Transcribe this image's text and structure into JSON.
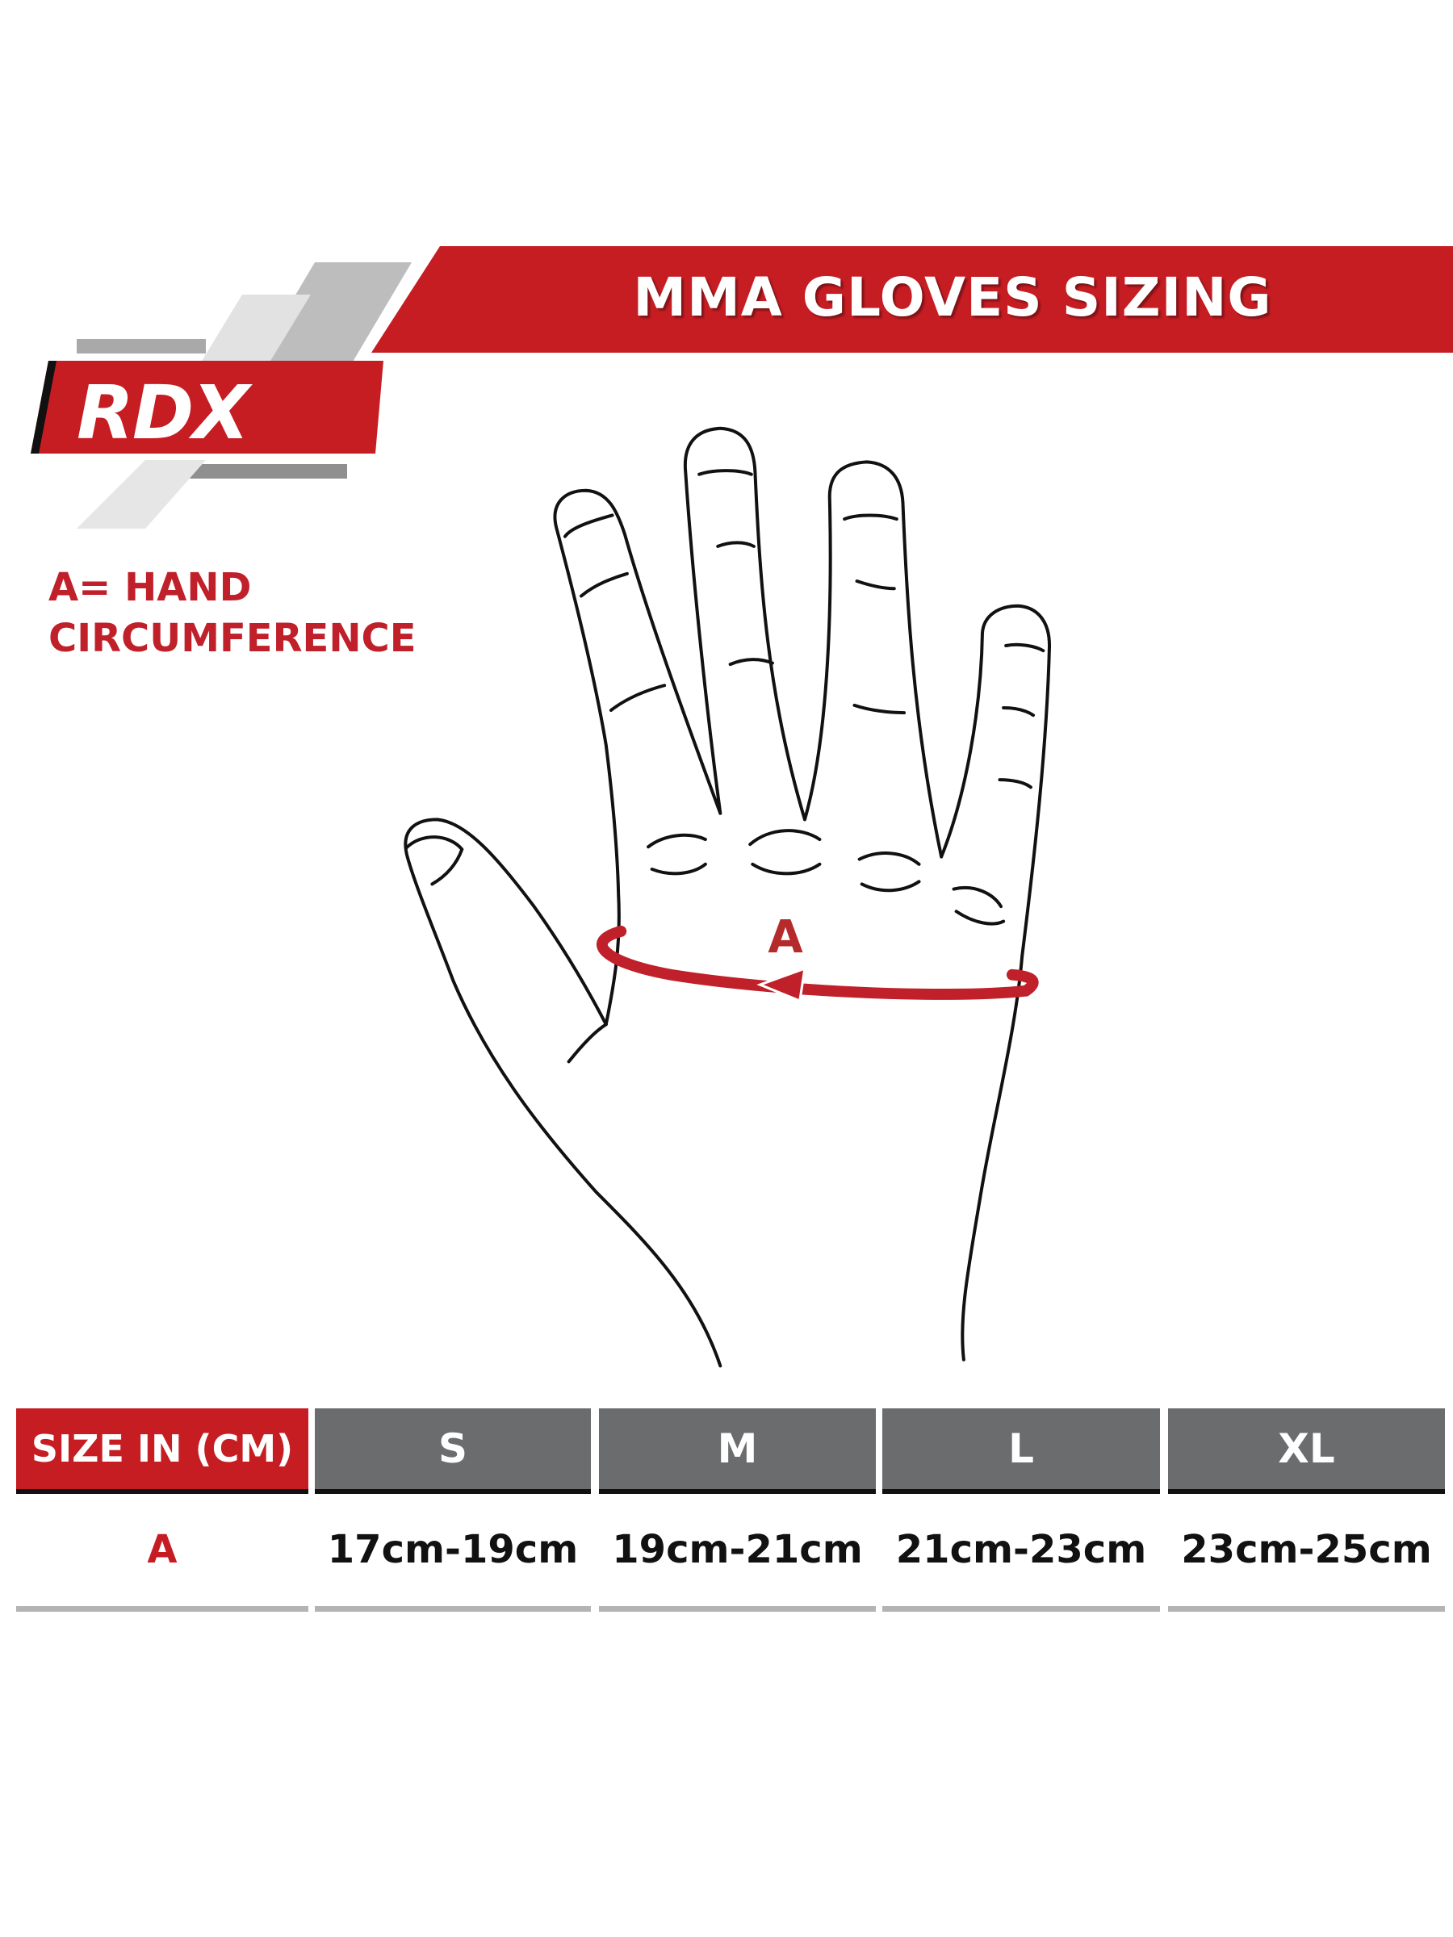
{
  "brand": {
    "logo_text": "RDX",
    "red": "#c61d23",
    "gray": "#6b6c6e"
  },
  "header": {
    "title": "MMA GLOVES SIZING"
  },
  "legend": {
    "line1": "A= HAND",
    "line2": "CIRCUMFERENCE"
  },
  "diagram": {
    "marker_label": "A"
  },
  "table": {
    "header_label": "SIZE IN (CM)",
    "sizes": [
      "S",
      "M",
      "L",
      "XL"
    ],
    "row_label": "A",
    "values": [
      "17cm-19cm",
      "19cm-21cm",
      "21cm-23cm",
      "23cm-25cm"
    ]
  }
}
